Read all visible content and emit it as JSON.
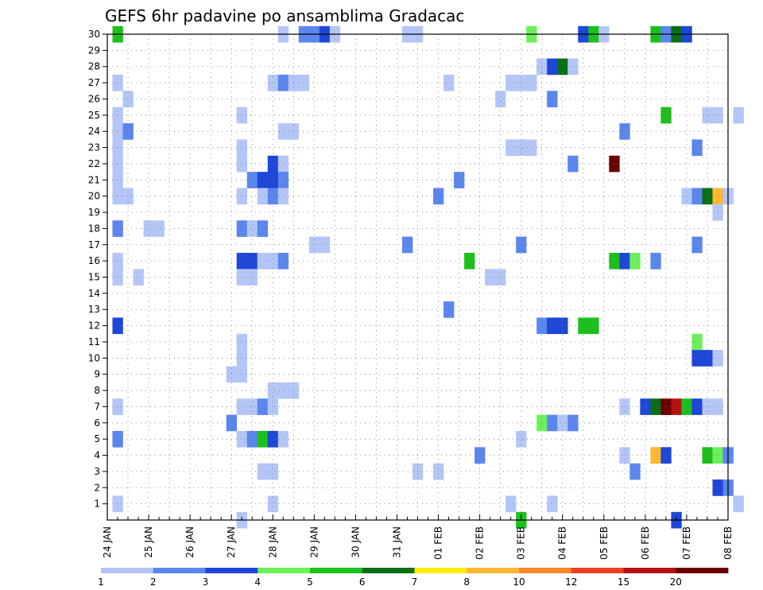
{
  "chart_data": {
    "type": "heatmap",
    "title": "GEFS 6hr padavine po ansamblima Gradacac",
    "xlabel": "",
    "ylabel": "",
    "x_ticks": [
      "24 JAN",
      "25 JAN",
      "26 JAN",
      "27 JAN",
      "28 JAN",
      "29 JAN",
      "30 JAN",
      "31 JAN",
      "01 FEB",
      "02 FEB",
      "03 FEB",
      "04 FEB",
      "05 FEB",
      "06 FEB",
      "07 FEB",
      "08 FEB"
    ],
    "xlim": [
      "24 JAN",
      "08 FEB"
    ],
    "y_ticks": [
      "1",
      "2",
      "3",
      "4",
      "5",
      "6",
      "7",
      "8",
      "9",
      "10",
      "11",
      "12",
      "13",
      "14",
      "15",
      "16",
      "17",
      "18",
      "19",
      "20",
      "21",
      "22",
      "23",
      "24",
      "25",
      "26",
      "27",
      "28",
      "29",
      "30"
    ],
    "ylim": [
      0,
      30
    ],
    "step_hours": 6,
    "grid": "dotted",
    "colorbar": {
      "placement": "bottom",
      "colors": [
        "#b3c6f7",
        "#5b86ee",
        "#1e46d8",
        "#6cf05a",
        "#1dbf1d",
        "#0a6e17",
        "#ffee00",
        "#ffb732",
        "#f8862b",
        "#ef3f25",
        "#b51212",
        "#6b0000"
      ],
      "labels": [
        "1",
        "2",
        "3",
        "4",
        "5",
        "6",
        "7",
        "8",
        "10",
        "12",
        "15",
        "20"
      ]
    },
    "cells": [
      {
        "m": 30,
        "t": 0,
        "l": 5
      },
      {
        "m": 30,
        "t": 16,
        "l": 1
      },
      {
        "m": 30,
        "t": 18,
        "l": 2
      },
      {
        "m": 30,
        "t": 19,
        "l": 2
      },
      {
        "m": 30,
        "t": 20,
        "l": 3
      },
      {
        "m": 30,
        "t": 21,
        "l": 1
      },
      {
        "m": 30,
        "t": 28,
        "l": 1
      },
      {
        "m": 30,
        "t": 29,
        "l": 1
      },
      {
        "m": 30,
        "t": 40,
        "l": 4
      },
      {
        "m": 30,
        "t": 45,
        "l": 3
      },
      {
        "m": 30,
        "t": 46,
        "l": 5
      },
      {
        "m": 30,
        "t": 47,
        "l": 1
      },
      {
        "m": 30,
        "t": 52,
        "l": 5
      },
      {
        "m": 30,
        "t": 53,
        "l": 2
      },
      {
        "m": 30,
        "t": 54,
        "l": 6
      },
      {
        "m": 30,
        "t": 55,
        "l": 3
      },
      {
        "m": 28,
        "t": 41,
        "l": 1
      },
      {
        "m": 28,
        "t": 42,
        "l": 3
      },
      {
        "m": 28,
        "t": 43,
        "l": 6
      },
      {
        "m": 28,
        "t": 44,
        "l": 1
      },
      {
        "m": 27,
        "t": 0,
        "l": 1
      },
      {
        "m": 27,
        "t": 15,
        "l": 1
      },
      {
        "m": 27,
        "t": 16,
        "l": 2
      },
      {
        "m": 27,
        "t": 17,
        "l": 1
      },
      {
        "m": 27,
        "t": 18,
        "l": 1
      },
      {
        "m": 27,
        "t": 32,
        "l": 1
      },
      {
        "m": 27,
        "t": 38,
        "l": 1
      },
      {
        "m": 27,
        "t": 39,
        "l": 1
      },
      {
        "m": 27,
        "t": 40,
        "l": 1
      },
      {
        "m": 26,
        "t": 1,
        "l": 1
      },
      {
        "m": 26,
        "t": 37,
        "l": 1
      },
      {
        "m": 26,
        "t": 42,
        "l": 2
      },
      {
        "m": 25,
        "t": 0,
        "l": 1
      },
      {
        "m": 25,
        "t": 12,
        "l": 1
      },
      {
        "m": 25,
        "t": 53,
        "l": 5
      },
      {
        "m": 25,
        "t": 57,
        "l": 1
      },
      {
        "m": 25,
        "t": 58,
        "l": 1
      },
      {
        "m": 25,
        "t": 60,
        "l": 1
      },
      {
        "m": 24,
        "t": 0,
        "l": 1
      },
      {
        "m": 24,
        "t": 1,
        "l": 2
      },
      {
        "m": 24,
        "t": 16,
        "l": 1
      },
      {
        "m": 24,
        "t": 17,
        "l": 1
      },
      {
        "m": 24,
        "t": 49,
        "l": 2
      },
      {
        "m": 23,
        "t": 0,
        "l": 1
      },
      {
        "m": 23,
        "t": 12,
        "l": 1
      },
      {
        "m": 23,
        "t": 38,
        "l": 1
      },
      {
        "m": 23,
        "t": 39,
        "l": 1
      },
      {
        "m": 23,
        "t": 40,
        "l": 1
      },
      {
        "m": 23,
        "t": 56,
        "l": 2
      },
      {
        "m": 22,
        "t": 0,
        "l": 1
      },
      {
        "m": 22,
        "t": 12,
        "l": 1
      },
      {
        "m": 22,
        "t": 15,
        "l": 3
      },
      {
        "m": 22,
        "t": 16,
        "l": 1
      },
      {
        "m": 22,
        "t": 44,
        "l": 2
      },
      {
        "m": 22,
        "t": 48,
        "l": 12
      },
      {
        "m": 21,
        "t": 0,
        "l": 1
      },
      {
        "m": 21,
        "t": 13,
        "l": 2
      },
      {
        "m": 21,
        "t": 14,
        "l": 3
      },
      {
        "m": 21,
        "t": 15,
        "l": 3
      },
      {
        "m": 21,
        "t": 16,
        "l": 2
      },
      {
        "m": 21,
        "t": 33,
        "l": 2
      },
      {
        "m": 20,
        "t": 0,
        "l": 1
      },
      {
        "m": 20,
        "t": 1,
        "l": 1
      },
      {
        "m": 20,
        "t": 12,
        "l": 1
      },
      {
        "m": 20,
        "t": 14,
        "l": 1
      },
      {
        "m": 20,
        "t": 15,
        "l": 2
      },
      {
        "m": 20,
        "t": 16,
        "l": 1
      },
      {
        "m": 20,
        "t": 31,
        "l": 2
      },
      {
        "m": 20,
        "t": 55,
        "l": 1
      },
      {
        "m": 20,
        "t": 56,
        "l": 2
      },
      {
        "m": 20,
        "t": 57,
        "l": 6
      },
      {
        "m": 20,
        "t": 58,
        "l": 8
      },
      {
        "m": 20,
        "t": 59,
        "l": 1
      },
      {
        "m": 19,
        "t": 58,
        "l": 1
      },
      {
        "m": 18,
        "t": 0,
        "l": 2
      },
      {
        "m": 18,
        "t": 3,
        "l": 1
      },
      {
        "m": 18,
        "t": 4,
        "l": 1
      },
      {
        "m": 18,
        "t": 12,
        "l": 2
      },
      {
        "m": 18,
        "t": 13,
        "l": 1
      },
      {
        "m": 18,
        "t": 14,
        "l": 2
      },
      {
        "m": 17,
        "t": 19,
        "l": 1
      },
      {
        "m": 17,
        "t": 20,
        "l": 1
      },
      {
        "m": 17,
        "t": 28,
        "l": 2
      },
      {
        "m": 17,
        "t": 39,
        "l": 2
      },
      {
        "m": 17,
        "t": 56,
        "l": 2
      },
      {
        "m": 16,
        "t": 0,
        "l": 1
      },
      {
        "m": 16,
        "t": 12,
        "l": 3
      },
      {
        "m": 16,
        "t": 13,
        "l": 3
      },
      {
        "m": 16,
        "t": 14,
        "l": 1
      },
      {
        "m": 16,
        "t": 15,
        "l": 1
      },
      {
        "m": 16,
        "t": 16,
        "l": 2
      },
      {
        "m": 16,
        "t": 34,
        "l": 5
      },
      {
        "m": 16,
        "t": 48,
        "l": 5
      },
      {
        "m": 16,
        "t": 49,
        "l": 3
      },
      {
        "m": 16,
        "t": 50,
        "l": 4
      },
      {
        "m": 16,
        "t": 52,
        "l": 2
      },
      {
        "m": 15,
        "t": 0,
        "l": 1
      },
      {
        "m": 15,
        "t": 2,
        "l": 1
      },
      {
        "m": 15,
        "t": 12,
        "l": 1
      },
      {
        "m": 15,
        "t": 13,
        "l": 1
      },
      {
        "m": 15,
        "t": 36,
        "l": 1
      },
      {
        "m": 15,
        "t": 37,
        "l": 1
      },
      {
        "m": 13,
        "t": 32,
        "l": 2
      },
      {
        "m": 12,
        "t": 0,
        "l": 3
      },
      {
        "m": 12,
        "t": 41,
        "l": 2
      },
      {
        "m": 12,
        "t": 42,
        "l": 3
      },
      {
        "m": 12,
        "t": 43,
        "l": 3
      },
      {
        "m": 12,
        "t": 45,
        "l": 5
      },
      {
        "m": 12,
        "t": 46,
        "l": 5
      },
      {
        "m": 11,
        "t": 12,
        "l": 1
      },
      {
        "m": 11,
        "t": 56,
        "l": 4
      },
      {
        "m": 10,
        "t": 12,
        "l": 1
      },
      {
        "m": 10,
        "t": 56,
        "l": 3
      },
      {
        "m": 10,
        "t": 57,
        "l": 3
      },
      {
        "m": 10,
        "t": 58,
        "l": 1
      },
      {
        "m": 9,
        "t": 11,
        "l": 1
      },
      {
        "m": 9,
        "t": 12,
        "l": 1
      },
      {
        "m": 8,
        "t": 15,
        "l": 1
      },
      {
        "m": 8,
        "t": 16,
        "l": 1
      },
      {
        "m": 8,
        "t": 17,
        "l": 1
      },
      {
        "m": 7,
        "t": 0,
        "l": 1
      },
      {
        "m": 7,
        "t": 12,
        "l": 1
      },
      {
        "m": 7,
        "t": 13,
        "l": 1
      },
      {
        "m": 7,
        "t": 14,
        "l": 2
      },
      {
        "m": 7,
        "t": 15,
        "l": 1
      },
      {
        "m": 7,
        "t": 49,
        "l": 1
      },
      {
        "m": 7,
        "t": 51,
        "l": 3
      },
      {
        "m": 7,
        "t": 52,
        "l": 6
      },
      {
        "m": 7,
        "t": 53,
        "l": 12
      },
      {
        "m": 7,
        "t": 54,
        "l": 11
      },
      {
        "m": 7,
        "t": 55,
        "l": 5
      },
      {
        "m": 7,
        "t": 56,
        "l": 3
      },
      {
        "m": 7,
        "t": 57,
        "l": 1
      },
      {
        "m": 7,
        "t": 58,
        "l": 1
      },
      {
        "m": 6,
        "t": 11,
        "l": 2
      },
      {
        "m": 6,
        "t": 41,
        "l": 4
      },
      {
        "m": 6,
        "t": 42,
        "l": 2
      },
      {
        "m": 6,
        "t": 43,
        "l": 1
      },
      {
        "m": 6,
        "t": 44,
        "l": 2
      },
      {
        "m": 5,
        "t": 0,
        "l": 2
      },
      {
        "m": 5,
        "t": 12,
        "l": 1
      },
      {
        "m": 5,
        "t": 13,
        "l": 2
      },
      {
        "m": 5,
        "t": 14,
        "l": 5
      },
      {
        "m": 5,
        "t": 15,
        "l": 3
      },
      {
        "m": 5,
        "t": 16,
        "l": 1
      },
      {
        "m": 5,
        "t": 39,
        "l": 1
      },
      {
        "m": 4,
        "t": 35,
        "l": 2
      },
      {
        "m": 4,
        "t": 49,
        "l": 1
      },
      {
        "m": 4,
        "t": 52,
        "l": 8
      },
      {
        "m": 4,
        "t": 53,
        "l": 3
      },
      {
        "m": 4,
        "t": 57,
        "l": 5
      },
      {
        "m": 4,
        "t": 58,
        "l": 4
      },
      {
        "m": 4,
        "t": 59,
        "l": 2
      },
      {
        "m": 3,
        "t": 14,
        "l": 1
      },
      {
        "m": 3,
        "t": 15,
        "l": 1
      },
      {
        "m": 3,
        "t": 29,
        "l": 1
      },
      {
        "m": 3,
        "t": 31,
        "l": 1
      },
      {
        "m": 3,
        "t": 50,
        "l": 2
      },
      {
        "m": 2,
        "t": 58,
        "l": 3
      },
      {
        "m": 2,
        "t": 59,
        "l": 2
      },
      {
        "m": 1,
        "t": 0,
        "l": 1
      },
      {
        "m": 1,
        "t": 15,
        "l": 1
      },
      {
        "m": 1,
        "t": 38,
        "l": 1
      },
      {
        "m": 1,
        "t": 42,
        "l": 1
      },
      {
        "m": 1,
        "t": 60,
        "l": 1
      },
      {
        "m": 0,
        "t": 12,
        "l": 1
      },
      {
        "m": 0,
        "t": 39,
        "l": 5
      },
      {
        "m": 0,
        "t": 54,
        "l": 3
      }
    ]
  }
}
